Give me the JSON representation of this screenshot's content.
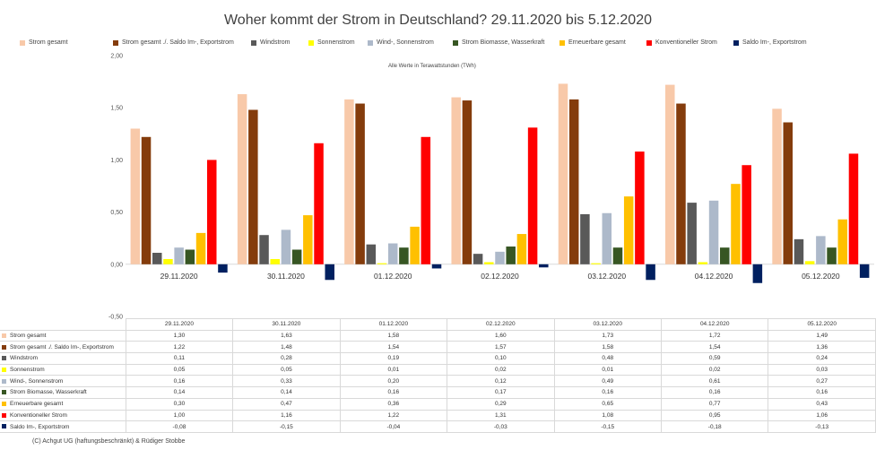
{
  "chart_data": {
    "type": "bar",
    "title": "Woher kommt der Strom in Deutschland? 29.11.2020 bis 5.12.2020",
    "subtitle": "Alle Werte in Terawattstunden (TWh)",
    "categories": [
      "29.11.2020",
      "30.11.2020",
      "01.12.2020",
      "02.12.2020",
      "03.12.2020",
      "04.12.2020",
      "05.12.2020"
    ],
    "ylim": [
      -0.5,
      2.0
    ],
    "yticks": [
      "-0,50",
      "0,00",
      "0,50",
      "1,00",
      "1,50",
      "2,00"
    ],
    "ytick_values": [
      -0.5,
      0,
      0.5,
      1.0,
      1.5,
      2.0
    ],
    "legend_position": "top",
    "series": [
      {
        "name": "Strom gesamt",
        "color": "#f8c9a9",
        "values": [
          1.3,
          1.63,
          1.58,
          1.6,
          1.73,
          1.72,
          1.49
        ],
        "labels": [
          "1,30",
          "1,63",
          "1,58",
          "1,60",
          "1,73",
          "1,72",
          "1,49"
        ]
      },
      {
        "name": "Strom gesamt ./. Saldo Im-, Exportstrom",
        "color": "#843c0c",
        "values": [
          1.22,
          1.48,
          1.54,
          1.57,
          1.58,
          1.54,
          1.36
        ],
        "labels": [
          "1,22",
          "1,48",
          "1,54",
          "1,57",
          "1,58",
          "1,54",
          "1,36"
        ]
      },
      {
        "name": "Windstrom",
        "color": "#595959",
        "values": [
          0.11,
          0.28,
          0.19,
          0.1,
          0.48,
          0.59,
          0.24
        ],
        "labels": [
          "0,11",
          "0,28",
          "0,19",
          "0,10",
          "0,48",
          "0,59",
          "0,24"
        ]
      },
      {
        "name": "Sonnenstrom",
        "color": "#ffff00",
        "values": [
          0.05,
          0.05,
          0.01,
          0.02,
          0.01,
          0.02,
          0.03
        ],
        "labels": [
          "0,05",
          "0,05",
          "0,01",
          "0,02",
          "0,01",
          "0,02",
          "0,03"
        ]
      },
      {
        "name": "Wind-, Sonnenstrom",
        "color": "#adb9ca",
        "values": [
          0.16,
          0.33,
          0.2,
          0.12,
          0.49,
          0.61,
          0.27
        ],
        "labels": [
          "0,16",
          "0,33",
          "0,20",
          "0,12",
          "0,49",
          "0,61",
          "0,27"
        ]
      },
      {
        "name": "Strom Biomasse, Wasserkraft",
        "color": "#375623",
        "values": [
          0.14,
          0.14,
          0.16,
          0.17,
          0.16,
          0.16,
          0.16
        ],
        "labels": [
          "0,14",
          "0,14",
          "0,16",
          "0,17",
          "0,16",
          "0,16",
          "0,16"
        ]
      },
      {
        "name": "Erneuerbare gesamt",
        "color": "#ffc000",
        "values": [
          0.3,
          0.47,
          0.36,
          0.29,
          0.65,
          0.77,
          0.43
        ],
        "labels": [
          "0,30",
          "0,47",
          "0,36",
          "0,29",
          "0,65",
          "0,77",
          "0,43"
        ]
      },
      {
        "name": "Konventioneller Strom",
        "color": "#ff0000",
        "values": [
          1.0,
          1.16,
          1.22,
          1.31,
          1.08,
          0.95,
          1.06
        ],
        "labels": [
          "1,00",
          "1,16",
          "1,22",
          "1,31",
          "1,08",
          "0,95",
          "1,06"
        ]
      },
      {
        "name": "Saldo Im-, Exportstrom",
        "color": "#002060",
        "values": [
          -0.08,
          -0.15,
          -0.04,
          -0.03,
          -0.15,
          -0.18,
          -0.13
        ],
        "labels": [
          "-0,08",
          "-0,15",
          "-0,04",
          "-0,03",
          "-0,15",
          "-0,18",
          "-0,13"
        ]
      }
    ]
  },
  "copyright": "(C) Achgut UG (haftungsbeschränkt) & Rüdiger Stobbe"
}
